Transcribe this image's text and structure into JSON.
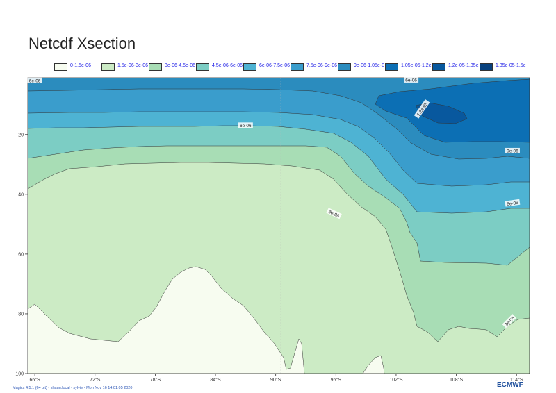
{
  "title": "Netcdf Xsection",
  "footer": "Magics 4.5.1 (64 bit) - shaun.local - sylvie - Mon Nov 16 14:01:05 2020",
  "logo_text": "ECMWF",
  "chart_data": {
    "type": "contour",
    "xlabel": "",
    "ylabel": "",
    "x_ticks": [
      "66°S",
      "72°S",
      "78°S",
      "84°S",
      "90°S",
      "96°S",
      "102°S",
      "108°S",
      "114°S"
    ],
    "x_tick_values": [
      66,
      72,
      78,
      84,
      90,
      96,
      102,
      108,
      114
    ],
    "y_ticks": [
      "20",
      "40",
      "60",
      "80",
      "100"
    ],
    "y_tick_values": [
      20,
      40,
      60,
      80,
      100
    ],
    "xlim": [
      65.3,
      115.3
    ],
    "ylim": [
      100,
      1
    ],
    "levels": [
      0,
      1.5e-06,
      3e-06,
      4.5e-06,
      6e-06,
      7.5e-06,
      9e-06,
      1.05e-05,
      1.2e-05,
      1.35e-05,
      1.5e-05
    ],
    "legend": [
      {
        "label": "0-1.5e-06",
        "color": "#f7fcf0"
      },
      {
        "label": "1.5e-06-3e-06",
        "color": "#ccebc5"
      },
      {
        "label": "3e-06-4.5e-06",
        "color": "#a8ddb5"
      },
      {
        "label": "4.5e-06-6e-06",
        "color": "#7ccdc4"
      },
      {
        "label": "6e-06-7.5e-06",
        "color": "#4eb3d3"
      },
      {
        "label": "7.5e-06-9e-06",
        "color": "#3a9dcc"
      },
      {
        "label": "9e-06-1.05e-05",
        "color": "#2b8cbe"
      },
      {
        "label": "1.05e-05-1.2e-05",
        "color": "#0c6fb4"
      },
      {
        "label": "1.2e-05-1.35e-05",
        "color": "#08589e"
      },
      {
        "label": "1.35e-05-1.5e-05",
        "color": "#08417e"
      }
    ],
    "contour_labels": [
      {
        "text": "6e-06",
        "x": 66.0,
        "y": 2.0,
        "angle": 0
      },
      {
        "text": "6e-06",
        "x": 103.5,
        "y": 1.8,
        "angle": 0
      },
      {
        "text": "1.2e-05",
        "x": 104.6,
        "y": 11.5,
        "angle": -55
      },
      {
        "text": "6e-06",
        "x": 87.0,
        "y": 17.0,
        "angle": 0
      },
      {
        "text": "9e-06",
        "x": 113.6,
        "y": 25.5,
        "angle": 0
      },
      {
        "text": "6e-06",
        "x": 113.6,
        "y": 43.0,
        "angle": -8
      },
      {
        "text": "3e-06",
        "x": 95.8,
        "y": 46.5,
        "angle": 25
      },
      {
        "text": "3e-06",
        "x": 113.3,
        "y": 82.5,
        "angle": -45
      }
    ]
  }
}
